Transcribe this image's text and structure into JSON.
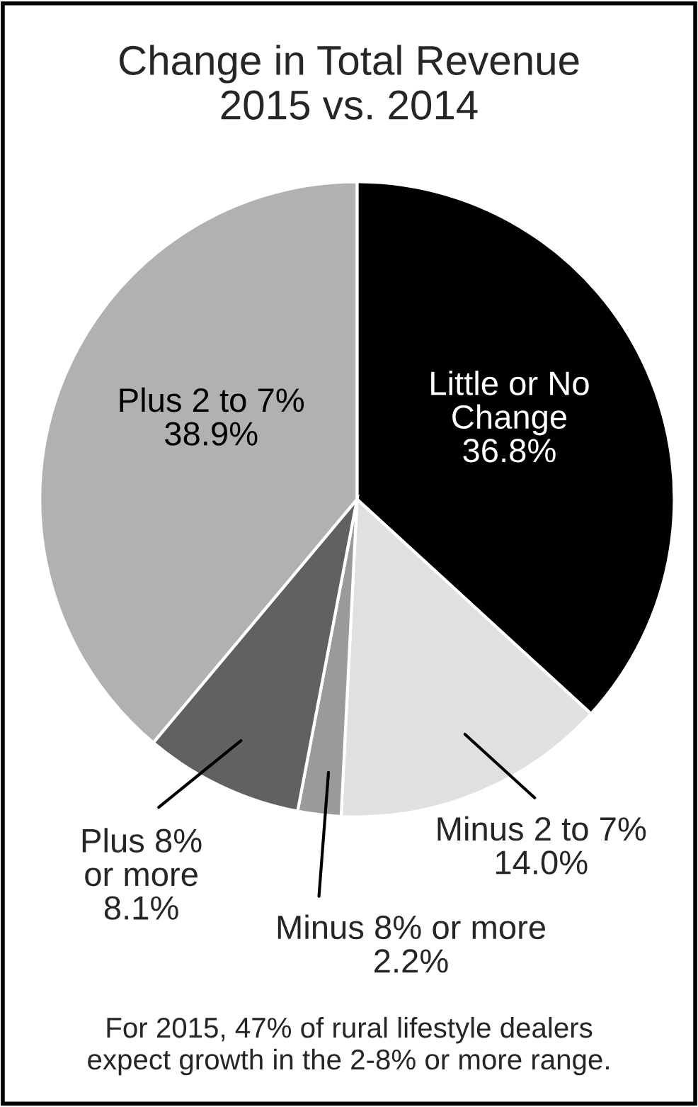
{
  "chart_data": {
    "type": "pie",
    "title": "Change in Total Revenue\n2015 vs. 2014",
    "categories": [
      "Little or No\nChange",
      "Minus 2 to 7%",
      "Minus 8% or more",
      "Plus 8%\nor more",
      "Plus 2 to 7%"
    ],
    "values": [
      36.8,
      14.0,
      2.2,
      8.1,
      38.9
    ],
    "colors": [
      "#000000",
      "#e0e0e0",
      "#9a9a9a",
      "#616161",
      "#b1b1b1"
    ],
    "value_labels": [
      "36.8%",
      "14.0%",
      "2.2%",
      "8.1%",
      "38.9%"
    ],
    "annotations": [
      "For 2015, 47% of rural lifestyle dealers\nexpect growth in the 2-8% or more range."
    ]
  }
}
